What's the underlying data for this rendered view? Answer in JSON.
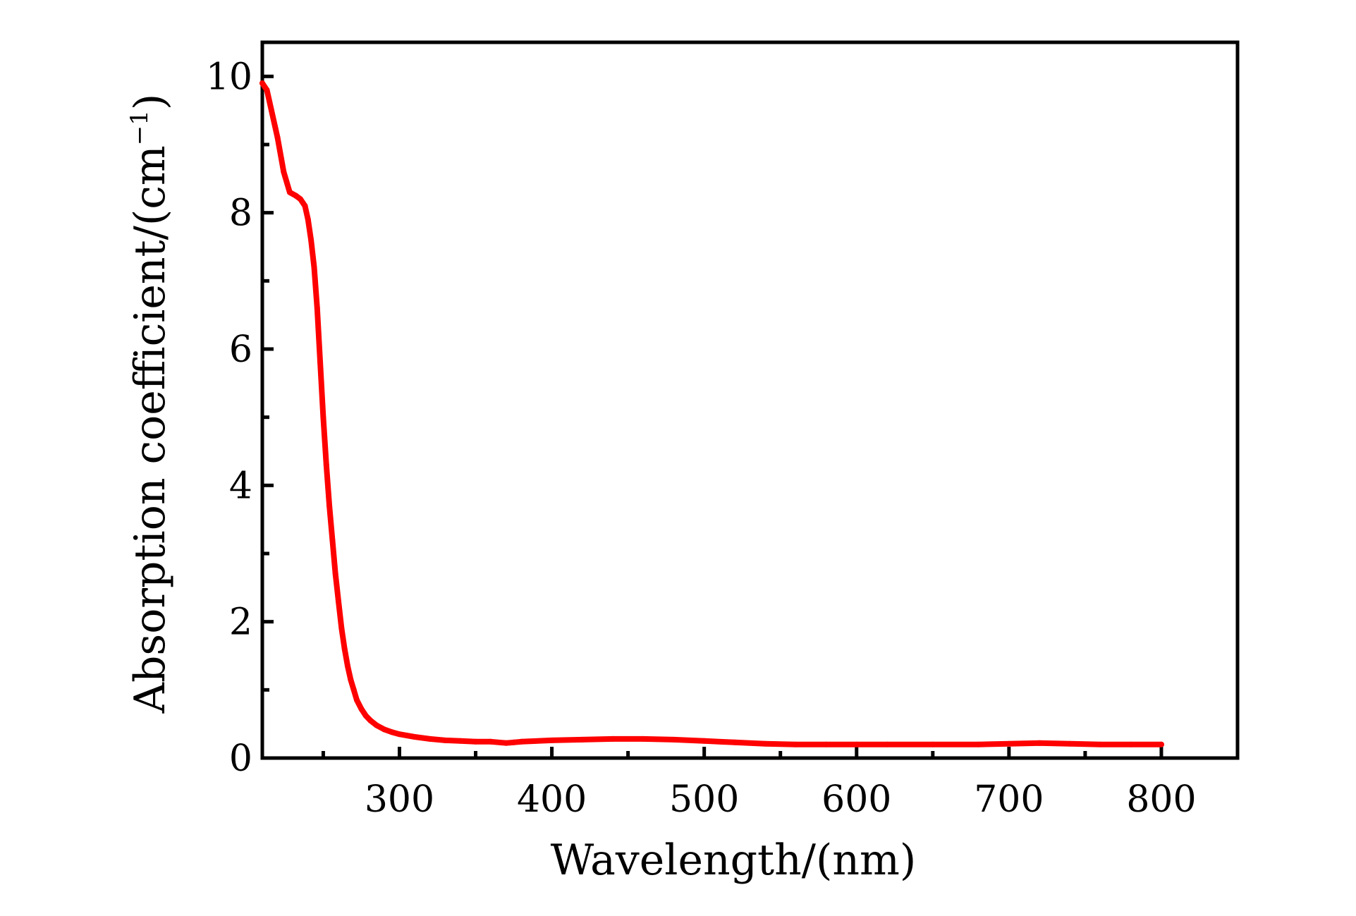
{
  "chart_data": {
    "type": "line",
    "xlabel": "Wavelength/(nm)",
    "ylabel": "Absorption coefficient/(cm",
    "ylabel_superscript": "−1",
    "ylabel_suffix": ")",
    "xlim": [
      210,
      850
    ],
    "ylim": [
      0,
      10.5
    ],
    "grid": false,
    "x_ticks": [
      300,
      400,
      500,
      600,
      700,
      800
    ],
    "x_tick_labels": [
      "300",
      "400",
      "500",
      "600",
      "700",
      "800"
    ],
    "x_minor_ticks": [
      250,
      350,
      450,
      550,
      650,
      750,
      850
    ],
    "y_ticks": [
      0,
      2,
      4,
      6,
      8,
      10
    ],
    "y_tick_labels": [
      "0",
      "2",
      "4",
      "6",
      "8",
      "10"
    ],
    "y_minor_ticks": [
      1,
      3,
      5,
      7,
      9
    ],
    "series": [
      {
        "color": "#ff0000",
        "x": [
          210,
          213,
          216,
          220,
          224,
          228,
          232,
          235,
          238,
          240,
          242,
          244,
          246,
          248,
          250,
          252,
          254,
          256,
          258,
          260,
          262,
          264,
          266,
          268,
          270,
          272,
          275,
          278,
          281,
          285,
          290,
          295,
          300,
          310,
          320,
          330,
          340,
          350,
          360,
          370,
          375,
          380,
          400,
          420,
          440,
          460,
          480,
          500,
          520,
          540,
          560,
          580,
          600,
          620,
          650,
          680,
          700,
          720,
          740,
          760,
          780,
          800
        ],
        "y": [
          9.9,
          9.8,
          9.5,
          9.1,
          8.6,
          8.3,
          8.25,
          8.2,
          8.1,
          7.9,
          7.6,
          7.2,
          6.6,
          5.8,
          5.0,
          4.3,
          3.7,
          3.2,
          2.7,
          2.3,
          1.9,
          1.6,
          1.35,
          1.15,
          1.0,
          0.85,
          0.72,
          0.62,
          0.55,
          0.48,
          0.42,
          0.38,
          0.35,
          0.31,
          0.28,
          0.26,
          0.25,
          0.24,
          0.24,
          0.22,
          0.23,
          0.24,
          0.26,
          0.27,
          0.28,
          0.28,
          0.27,
          0.25,
          0.23,
          0.21,
          0.2,
          0.2,
          0.2,
          0.2,
          0.2,
          0.2,
          0.21,
          0.22,
          0.21,
          0.2,
          0.2,
          0.2
        ]
      }
    ]
  }
}
